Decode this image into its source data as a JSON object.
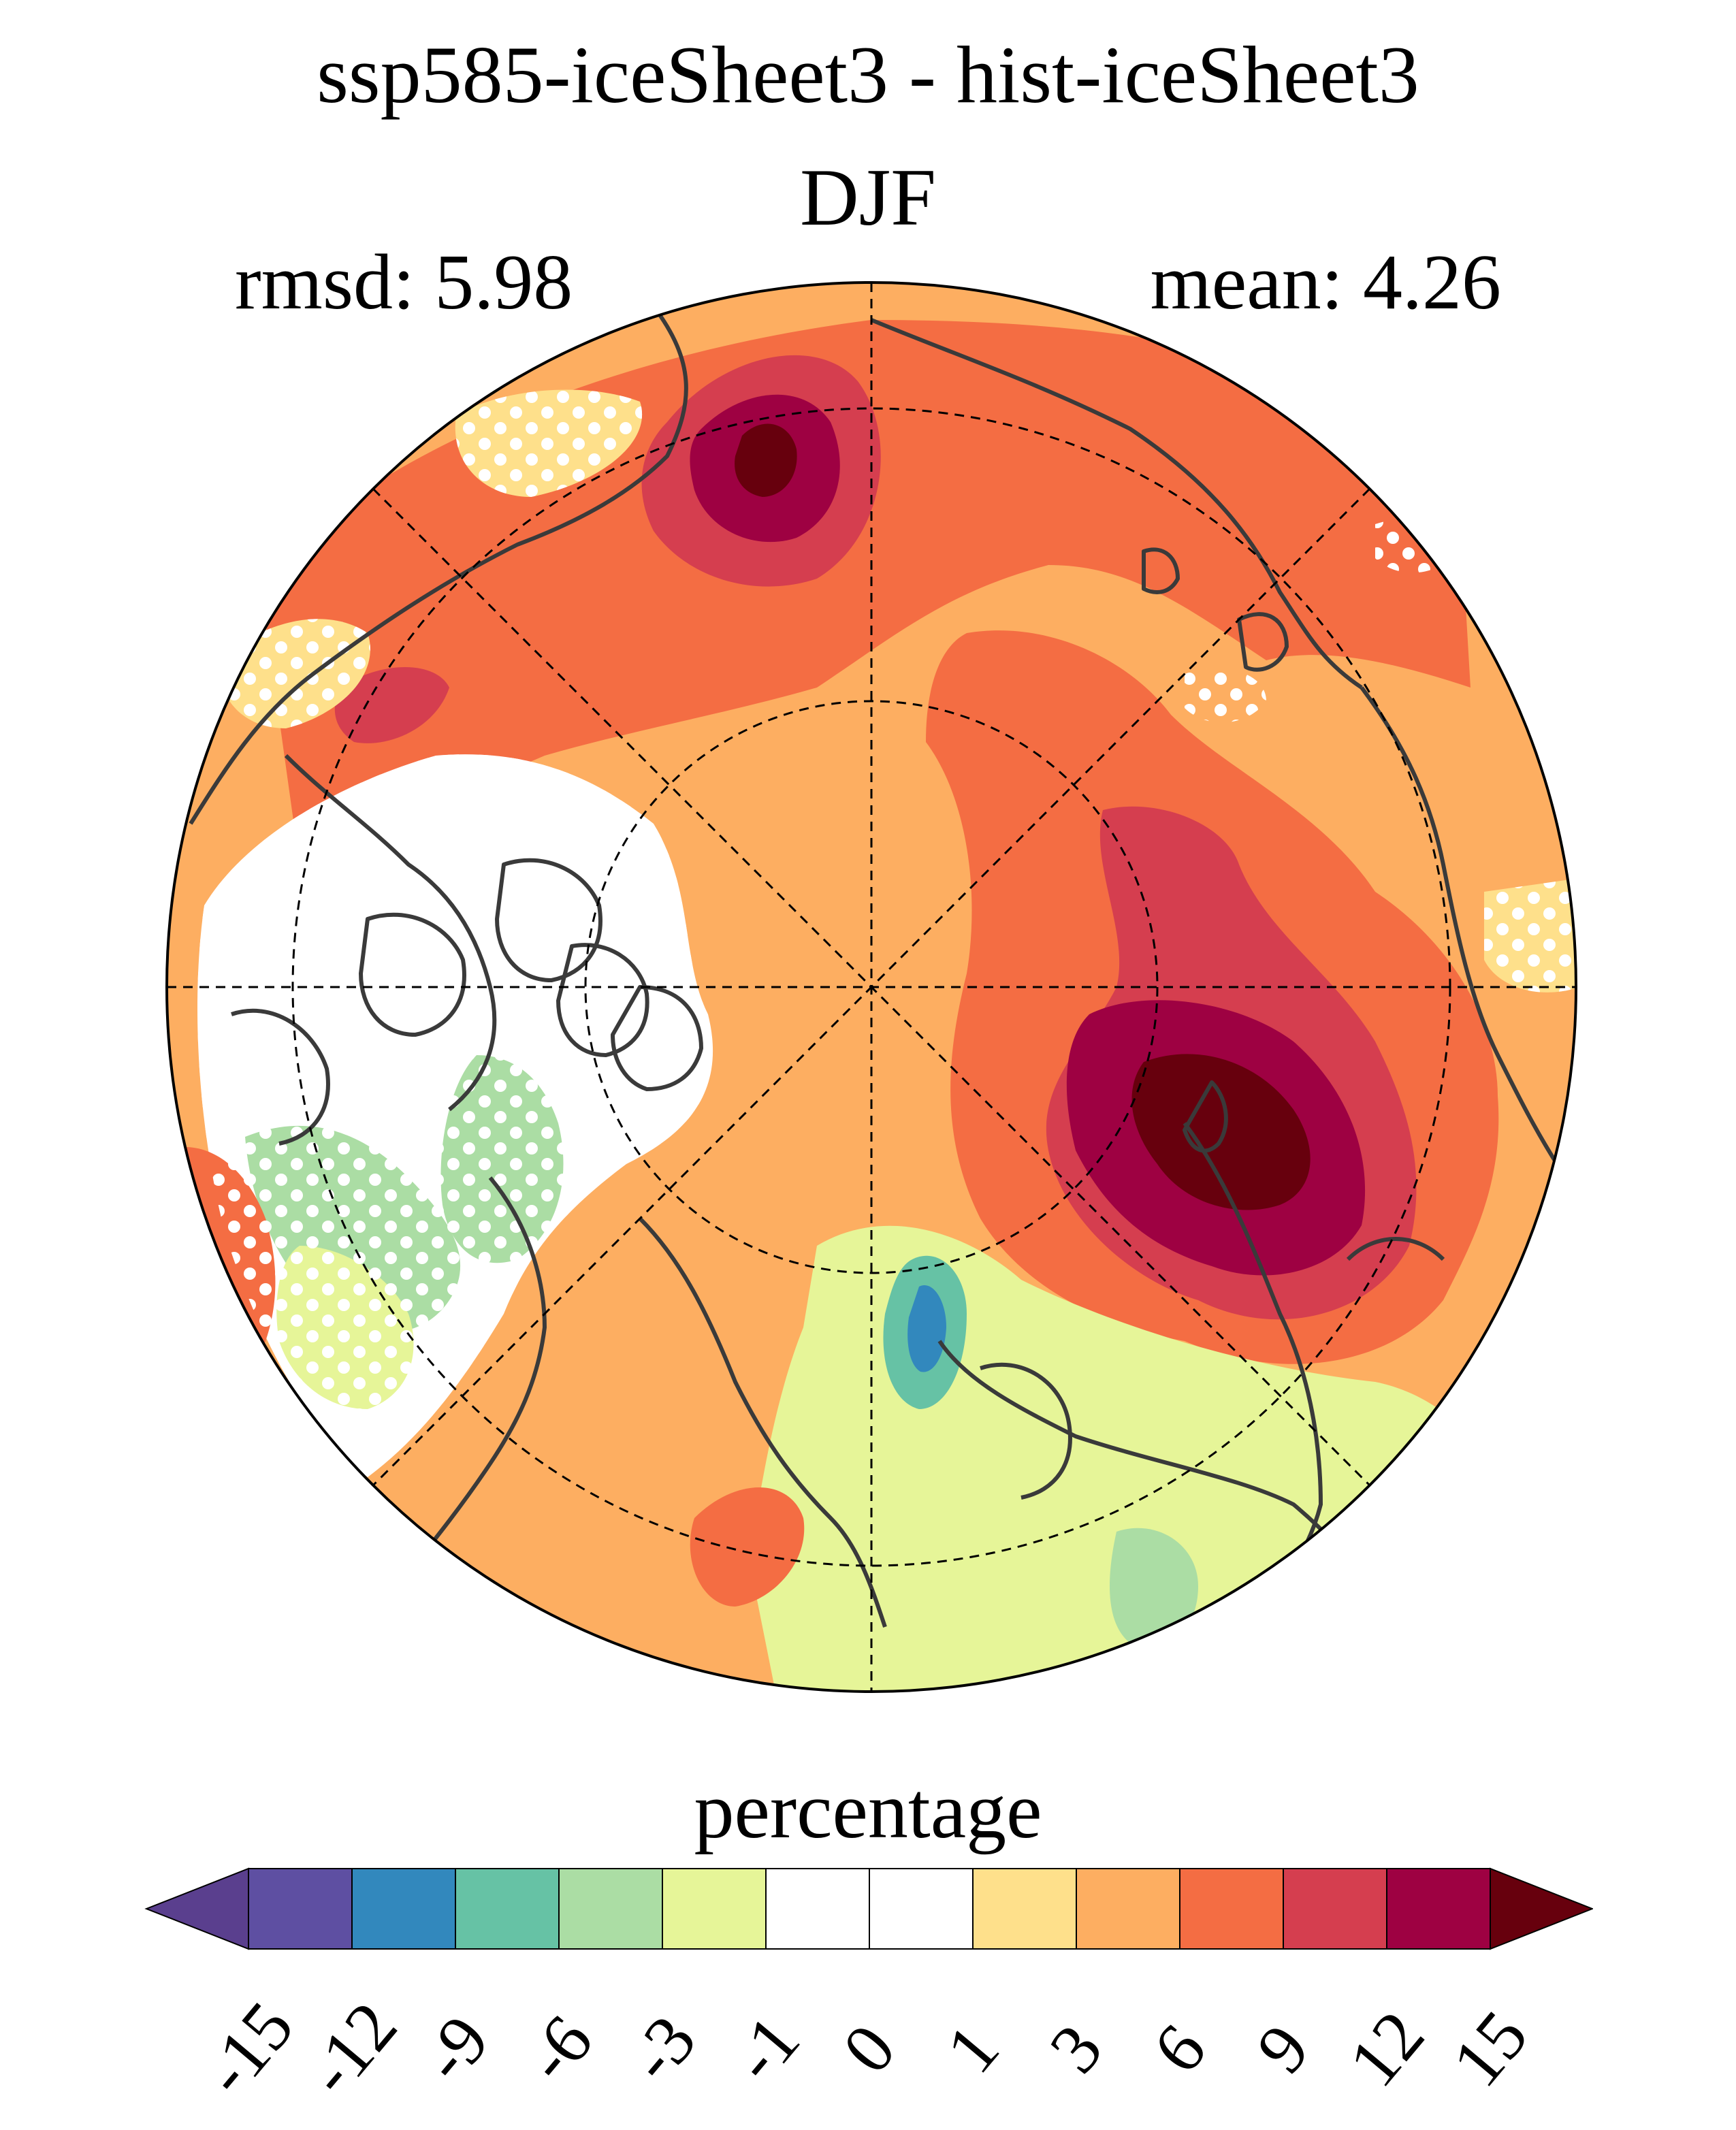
{
  "title": "ssp585-iceSheet3 - hist-iceSheet3",
  "season": "DJF",
  "stats": {
    "rmsd": "rmsd: 5.98",
    "mean": "mean: 4.26"
  },
  "colorbar": {
    "label": "percentage",
    "ticks": [
      "-15",
      "-12",
      "-9",
      "-6",
      "-3",
      "-1",
      "0",
      "1",
      "3",
      "6",
      "9",
      "12",
      "15"
    ],
    "low_extend_color": "#5a3f8e",
    "high_extend_color": "#67000d",
    "colors": [
      "#5e4fa2",
      "#3288bd",
      "#66c2a5",
      "#abdda4",
      "#e6f598",
      "#ffffff",
      "#ffffff",
      "#fee08b",
      "#fdae61",
      "#f46d43",
      "#d53e4f",
      "#9e0142"
    ]
  },
  "map": {
    "projection": "north polar stereographic",
    "stippling": "white dots mark non-significant regions",
    "coastline_color": "#3a3a3a"
  }
}
